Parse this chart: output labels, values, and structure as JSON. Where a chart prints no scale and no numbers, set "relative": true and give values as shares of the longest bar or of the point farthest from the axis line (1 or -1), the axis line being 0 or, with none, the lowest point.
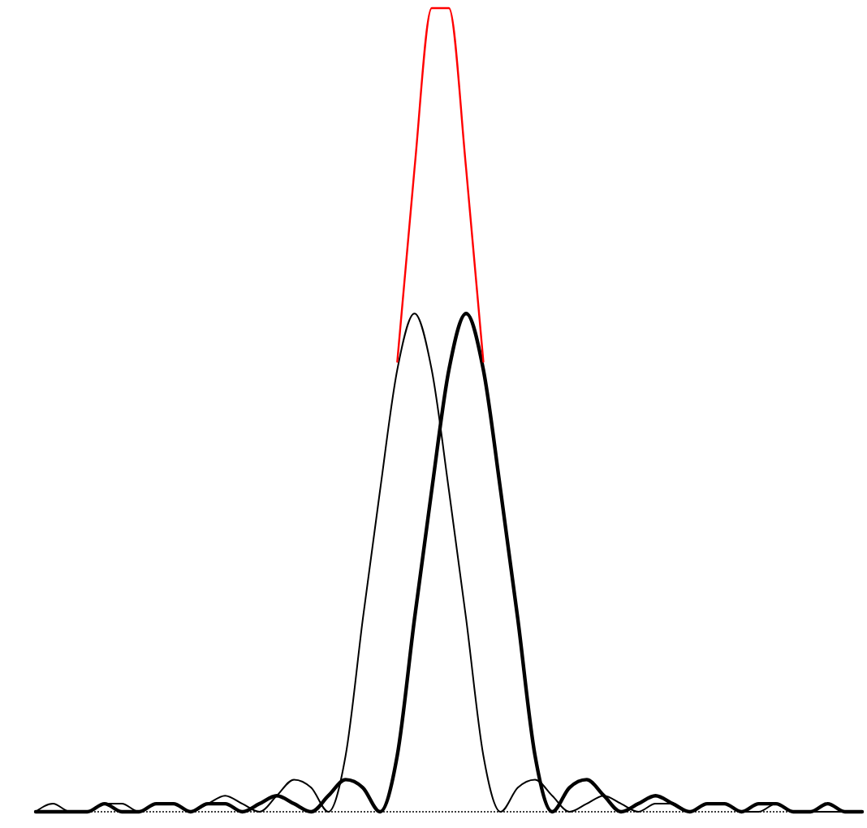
{
  "chart_data": {
    "type": "line",
    "relative": true,
    "categories": [
      null,
      null,
      null,
      null,
      null,
      null,
      null,
      null,
      null,
      null,
      null,
      null,
      null,
      null,
      null,
      null,
      null,
      null,
      null,
      null,
      null,
      null,
      null,
      null,
      null,
      null,
      null,
      null,
      null,
      null,
      null,
      null,
      null,
      null,
      null,
      null,
      null,
      null,
      null,
      null,
      null,
      null,
      null,
      null,
      null,
      null,
      null,
      null,
      null
    ],
    "series": [
      {
        "color": "#000000",
        "values": [
          0,
          0.01,
          0,
          0,
          0.01,
          0.01,
          0,
          0.01,
          0.01,
          0,
          0.01,
          0.02,
          0.01,
          0,
          0.02,
          0.04,
          0.03,
          0,
          0.07,
          0.24,
          0.4,
          0.55,
          0.62,
          0.55,
          0.4,
          0.24,
          0.07,
          0,
          0.03,
          0.04,
          0.02,
          0,
          0.01,
          0.02,
          0.01,
          0,
          0.01,
          0.01,
          0,
          0.01,
          0.01,
          0,
          0,
          0.01,
          0,
          0,
          0,
          0,
          0
        ]
      },
      {
        "color": "#000000",
        "values": [
          0,
          0,
          0,
          0,
          0.01,
          0,
          0,
          0.01,
          0.01,
          0,
          0.01,
          0.01,
          0,
          0.01,
          0.02,
          0.01,
          0,
          0.02,
          0.04,
          0.03,
          0,
          0.07,
          0.24,
          0.4,
          0.55,
          0.62,
          0.55,
          0.4,
          0.24,
          0.07,
          0,
          0.03,
          0.04,
          0.02,
          0,
          0.01,
          0.02,
          0.01,
          0,
          0.01,
          0.01,
          0,
          0.01,
          0.01,
          0,
          0,
          0.01,
          0,
          0
        ]
      },
      {
        "color": "#ff0000",
        "values": [
          null,
          null,
          null,
          null,
          null,
          null,
          null,
          null,
          null,
          null,
          null,
          null,
          null,
          null,
          null,
          null,
          null,
          null,
          null,
          null,
          null,
          0.56,
          0.8,
          1,
          1,
          0.8,
          0.56,
          null,
          null,
          null,
          null,
          null,
          null,
          null,
          null,
          null,
          null,
          null,
          null,
          null,
          null,
          null,
          null,
          null,
          null,
          null,
          null,
          null,
          null
        ]
      }
    ]
  }
}
